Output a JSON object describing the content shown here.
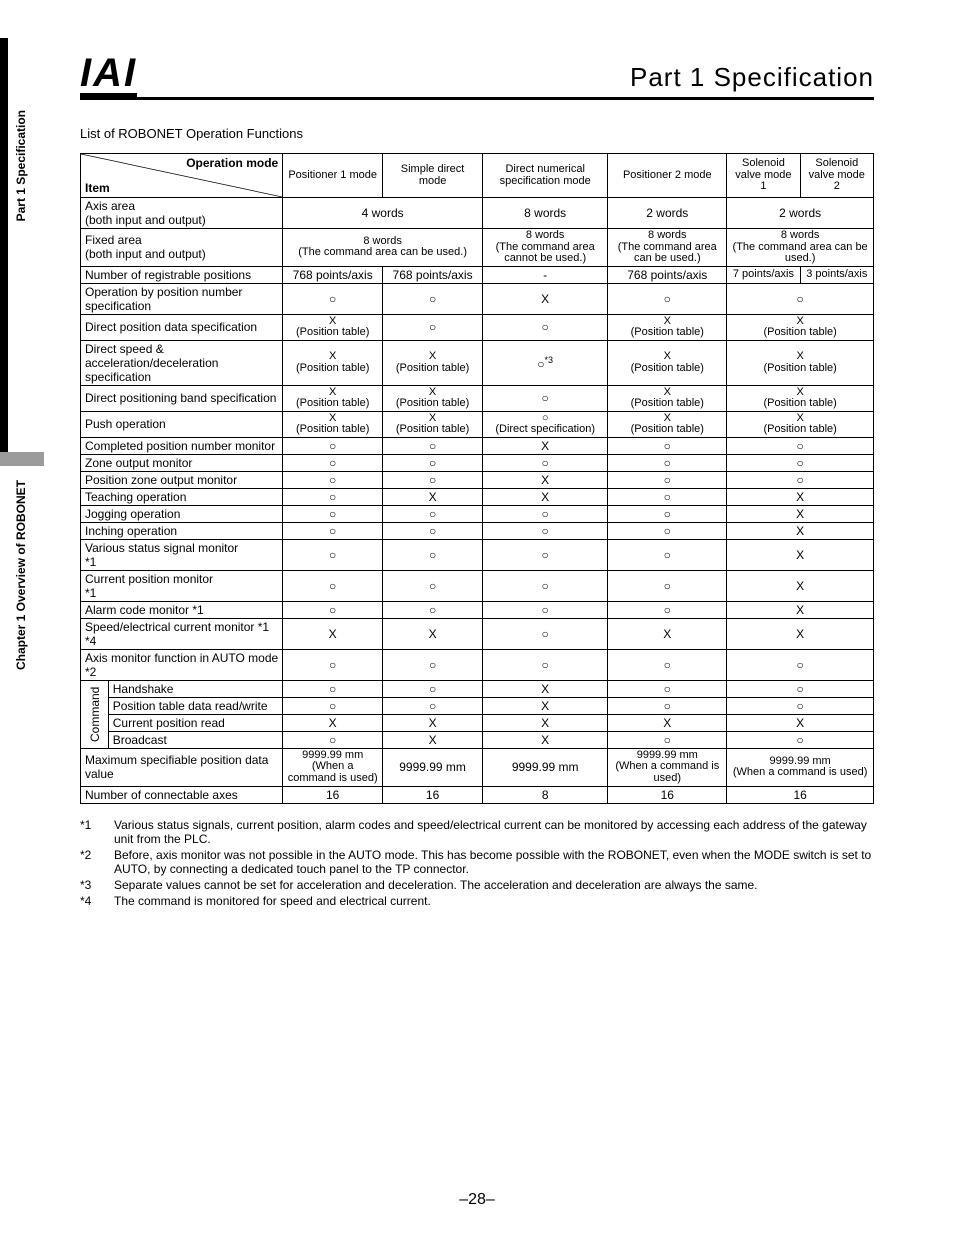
{
  "sidebar": {
    "label_top": "Part 1 Specification",
    "label_bottom": "Chapter 1 Overview of ROBONET"
  },
  "header": {
    "logo": "IAI",
    "part_title": "Part 1  Specification"
  },
  "caption": "List of ROBONET Operation Functions",
  "table": {
    "diag_top": "Operation mode",
    "diag_bottom": "Item",
    "columns": [
      "Positioner 1 mode",
      "Simple direct mode",
      "Direct numerical specification mode",
      "Positioner 2 mode",
      "Solenoid valve mode 1",
      "Solenoid valve mode 2"
    ],
    "command_label": "Command",
    "rows": [
      {
        "item": "Axis area\n(both input and output)",
        "cells": [
          {
            "text": "4 words",
            "span": 2
          },
          {
            "text": "8 words"
          },
          {
            "text": "2 words"
          },
          {
            "text": "2 words",
            "span": 2
          }
        ]
      },
      {
        "item": "Fixed area\n(both input and output)",
        "cells": [
          {
            "text": "8 words\n(The command area can be used.)",
            "span": 2,
            "cls": "small"
          },
          {
            "text": "8 words\n(The command area cannot be used.)",
            "cls": "small"
          },
          {
            "text": "8 words\n(The command area can be used.)",
            "cls": "small"
          },
          {
            "text": "8 words\n(The command area can be used.)",
            "span": 2,
            "cls": "small"
          }
        ]
      },
      {
        "item": "Number of registrable positions",
        "cells": [
          {
            "text": "768 points/axis"
          },
          {
            "text": "768 points/axis"
          },
          {
            "text": "-"
          },
          {
            "text": "768 points/axis"
          },
          {
            "text": "7 points/axis",
            "cls": "small"
          },
          {
            "text": "3 points/axis",
            "cls": "small"
          }
        ]
      },
      {
        "item": "Operation by position number specification",
        "cells": [
          {
            "text": "○"
          },
          {
            "text": "○"
          },
          {
            "text": "X"
          },
          {
            "text": "○"
          },
          {
            "text": "○",
            "span": 2
          }
        ]
      },
      {
        "item": "Direct position data specification",
        "cells": [
          {
            "text": "X\n(Position table)",
            "cls": "small"
          },
          {
            "text": "○"
          },
          {
            "text": "○"
          },
          {
            "text": "X\n(Position table)",
            "cls": "small"
          },
          {
            "text": "X\n(Position table)",
            "span": 2,
            "cls": "small"
          }
        ]
      },
      {
        "item": "Direct speed & acceleration/deceleration specification",
        "cells": [
          {
            "text": "X\n(Position table)",
            "cls": "small"
          },
          {
            "text": "X\n(Position table)",
            "cls": "small"
          },
          {
            "html": "○<sup style='font-size:9px'>*3</sup>"
          },
          {
            "text": "X\n(Position table)",
            "cls": "small"
          },
          {
            "text": "X\n(Position table)",
            "span": 2,
            "cls": "small"
          }
        ]
      },
      {
        "item": "Direct positioning band specification",
        "cells": [
          {
            "text": "X\n(Position table)",
            "cls": "small"
          },
          {
            "text": "X\n(Position table)",
            "cls": "small"
          },
          {
            "text": "○"
          },
          {
            "text": "X\n(Position table)",
            "cls": "small"
          },
          {
            "text": "X\n(Position table)",
            "span": 2,
            "cls": "small"
          }
        ]
      },
      {
        "item": "Push operation",
        "cells": [
          {
            "text": "X\n(Position table)",
            "cls": "small"
          },
          {
            "text": "X\n(Position table)",
            "cls": "small"
          },
          {
            "text": "○\n(Direct specification)",
            "cls": "small"
          },
          {
            "text": "X\n(Position table)",
            "cls": "small"
          },
          {
            "text": "X\n(Position table)",
            "span": 2,
            "cls": "small"
          }
        ]
      },
      {
        "item": "Completed position number monitor",
        "cells": [
          {
            "text": "○"
          },
          {
            "text": "○"
          },
          {
            "text": "X"
          },
          {
            "text": "○"
          },
          {
            "text": "○",
            "span": 2
          }
        ]
      },
      {
        "item": "Zone output monitor",
        "cells": [
          {
            "text": "○"
          },
          {
            "text": "○"
          },
          {
            "text": "○"
          },
          {
            "text": "○"
          },
          {
            "text": "○",
            "span": 2
          }
        ]
      },
      {
        "item": "Position zone output monitor",
        "cells": [
          {
            "text": "○"
          },
          {
            "text": "○"
          },
          {
            "text": "X"
          },
          {
            "text": "○"
          },
          {
            "text": "○",
            "span": 2
          }
        ]
      },
      {
        "item": "Teaching operation",
        "cells": [
          {
            "text": "○"
          },
          {
            "text": "X"
          },
          {
            "text": "X"
          },
          {
            "text": "○"
          },
          {
            "text": "X",
            "span": 2
          }
        ]
      },
      {
        "item": "Jogging operation",
        "cells": [
          {
            "text": "○"
          },
          {
            "text": "○"
          },
          {
            "text": "○"
          },
          {
            "text": "○"
          },
          {
            "text": "X",
            "span": 2
          }
        ]
      },
      {
        "item": "Inching operation",
        "cells": [
          {
            "text": "○"
          },
          {
            "text": "○"
          },
          {
            "text": "○"
          },
          {
            "text": "○"
          },
          {
            "text": "X",
            "span": 2
          }
        ]
      },
      {
        "item": "Various status signal monitor\n*1",
        "cells": [
          {
            "text": "○"
          },
          {
            "text": "○"
          },
          {
            "text": "○"
          },
          {
            "text": "○"
          },
          {
            "text": "X",
            "span": 2
          }
        ]
      },
      {
        "item": "Current position monitor\n*1",
        "cells": [
          {
            "text": "○"
          },
          {
            "text": "○"
          },
          {
            "text": "○"
          },
          {
            "text": "○"
          },
          {
            "text": "X",
            "span": 2
          }
        ]
      },
      {
        "item": "Alarm code monitor  *1",
        "cells": [
          {
            "text": "○"
          },
          {
            "text": "○"
          },
          {
            "text": "○"
          },
          {
            "text": "○"
          },
          {
            "text": "X",
            "span": 2
          }
        ]
      },
      {
        "item": "Speed/electrical current monitor      *1 *4",
        "cells": [
          {
            "text": "X"
          },
          {
            "text": "X"
          },
          {
            "text": "○"
          },
          {
            "text": "X"
          },
          {
            "text": "X",
            "span": 2
          }
        ]
      },
      {
        "item": "Axis monitor function in AUTO mode            *2",
        "cells": [
          {
            "text": "○"
          },
          {
            "text": "○"
          },
          {
            "text": "○"
          },
          {
            "text": "○"
          },
          {
            "text": "○",
            "span": 2
          }
        ]
      },
      {
        "item": "Handshake",
        "command": true,
        "cells": [
          {
            "text": "○"
          },
          {
            "text": "○"
          },
          {
            "text": "X"
          },
          {
            "text": "○"
          },
          {
            "text": "○",
            "span": 2
          }
        ]
      },
      {
        "item": "Position table data read/write",
        "command": true,
        "cells": [
          {
            "text": "○"
          },
          {
            "text": "○"
          },
          {
            "text": "X"
          },
          {
            "text": "○"
          },
          {
            "text": "○",
            "span": 2
          }
        ]
      },
      {
        "item": "Current position read",
        "command": true,
        "cells": [
          {
            "text": "X"
          },
          {
            "text": "X"
          },
          {
            "text": "X"
          },
          {
            "text": "X"
          },
          {
            "text": "X",
            "span": 2
          }
        ]
      },
      {
        "item": "Broadcast",
        "command": true,
        "cells": [
          {
            "text": "○"
          },
          {
            "text": "X"
          },
          {
            "text": "X"
          },
          {
            "text": "○"
          },
          {
            "text": "○",
            "span": 2
          }
        ]
      },
      {
        "item": "Maximum specifiable position data value",
        "cells": [
          {
            "text": "9999.99 mm\n(When a command is used)",
            "cls": "small"
          },
          {
            "text": "9999.99 mm"
          },
          {
            "text": "9999.99 mm"
          },
          {
            "text": "9999.99 mm\n(When a command is used)",
            "cls": "small"
          },
          {
            "text": "9999.99 mm\n(When a command is used)",
            "span": 2,
            "cls": "small"
          }
        ]
      },
      {
        "item": "Number of connectable axes",
        "cells": [
          {
            "text": "16"
          },
          {
            "text": "16"
          },
          {
            "text": "8"
          },
          {
            "text": "16"
          },
          {
            "text": "16",
            "span": 2
          }
        ]
      }
    ],
    "col_widths_pct": [
      25.5,
      12.6,
      12.6,
      15.8,
      15.0,
      9.25,
      9.25
    ]
  },
  "footnotes": [
    {
      "tag": "*1",
      "text": "Various status signals, current position, alarm codes and speed/electrical current can be monitored by accessing each address of the gateway unit from the PLC."
    },
    {
      "tag": "*2",
      "text": "Before, axis monitor was not possible in the AUTO mode. This has become possible with the ROBONET, even when the MODE switch is set to AUTO, by connecting a dedicated touch panel to the TP connector."
    },
    {
      "tag": "*3",
      "text": "Separate values cannot be set for acceleration and deceleration. The acceleration and deceleration are always the same."
    },
    {
      "tag": "*4",
      "text": "The command is monitored for speed and electrical current."
    }
  ],
  "page_number": "–28–"
}
